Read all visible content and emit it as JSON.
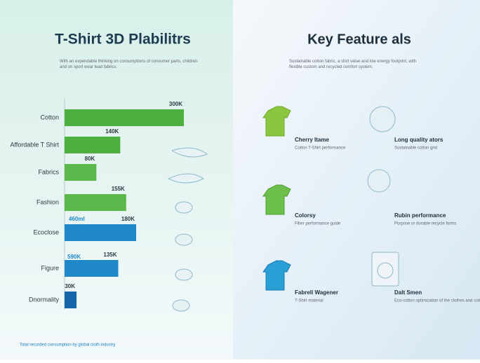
{
  "chart_data": {
    "type": "bar",
    "orientation": "horizontal",
    "title": "T-Shirt 3D Plabilitrs",
    "subtitle": "With an expendable thinking on consumptions of consumer parts, children and on sport wear lead fabrics.",
    "categories": [
      "Cotton",
      "Affordable T Shirt",
      "Fabrics",
      "Fashion",
      "Ecoclose",
      "Figure",
      "Dnormality"
    ],
    "values": [
      300,
      140,
      80,
      155,
      180,
      135,
      30
    ],
    "value_labels": [
      "300K",
      "140K",
      "80K",
      "155K",
      "180K",
      "135K",
      "30K"
    ],
    "colors": [
      "#4caf3e",
      "#4caf3e",
      "#5cb84a",
      "#5cb84a",
      "#1e88c8",
      "#1e88c8",
      "#1565a8"
    ],
    "xlim": [
      0,
      300
    ],
    "annotations": [
      "460ml",
      "590K"
    ],
    "footer": "Total recorded consumption by global cloth industry"
  },
  "features": {
    "title": "Key Feature als",
    "subtitle": "Sustainable cotton fabric, a shirt value and low energy footprint, with flexible custom and recycled comfort system.",
    "items": [
      {
        "title": "Cherry Itame",
        "desc": "Cotton T-Shirt performance"
      },
      {
        "title": "Long quality ators",
        "desc": "Sustainable cotton grid"
      },
      {
        "title": "Colorsy",
        "desc": "Fiber performance guide"
      },
      {
        "title": "Rubin performance",
        "desc": "Purpose or durable recycle forms"
      },
      {
        "title": "Fabrell Wagener",
        "desc": "T-Shirt material"
      },
      {
        "title": "Dalt Smen",
        "desc": "Eco-cotton optimization of the clothes and cotton forms"
      }
    ]
  }
}
